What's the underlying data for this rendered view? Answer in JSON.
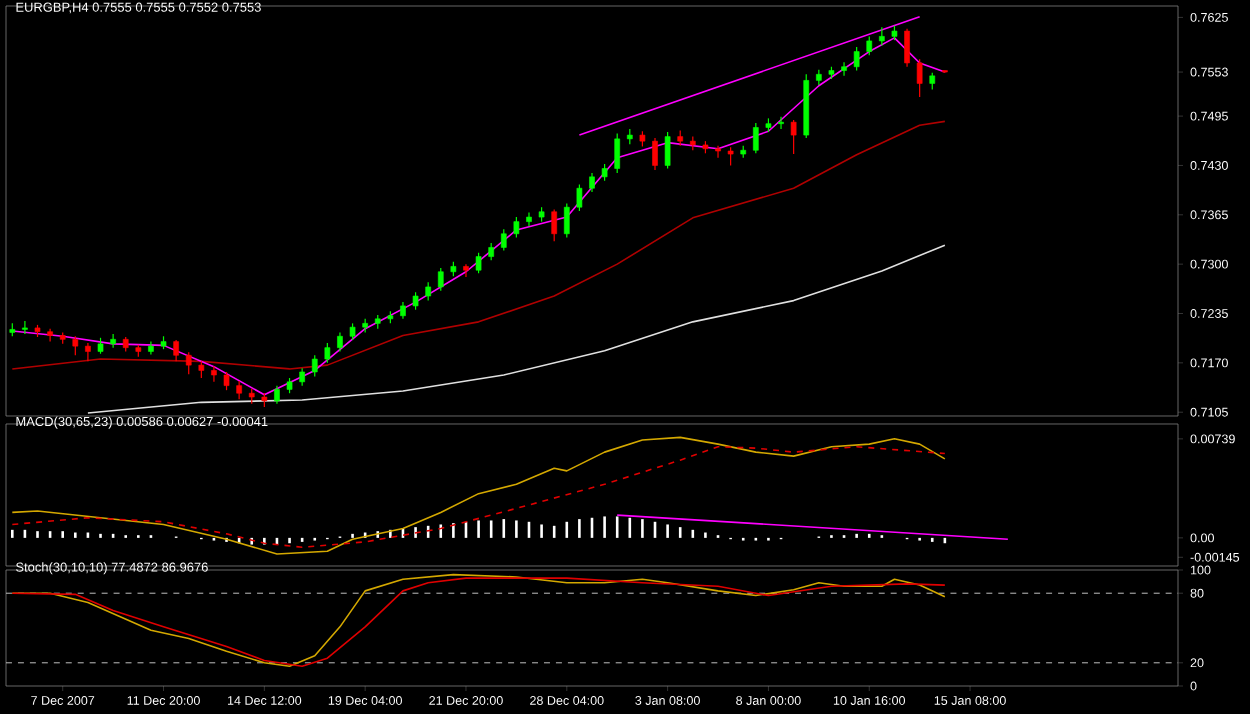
{
  "chart_data": [
    {
      "type": "candlestick",
      "title": "EURGBP,H4  0.7555 0.7555 0.7552 0.7553",
      "tick_labels": "y",
      "categories": [
        null,
        null,
        null,
        null,
        null,
        null,
        null,
        null,
        null,
        null,
        null,
        null,
        null,
        null,
        null,
        null,
        null,
        null,
        null,
        null,
        null,
        null,
        null,
        null,
        null,
        null,
        null,
        null,
        null,
        null,
        null,
        null,
        null,
        null,
        null,
        null,
        null,
        null,
        null,
        null,
        null,
        null,
        null,
        null,
        null,
        null,
        null,
        null,
        null,
        null,
        null,
        null,
        null,
        null,
        null,
        null,
        null,
        null,
        null,
        null,
        null,
        null,
        null,
        null,
        null,
        null,
        null,
        null,
        null,
        null,
        null,
        null,
        null,
        null,
        null,
        null,
        null,
        null,
        null,
        null,
        null,
        null,
        null,
        null,
        null,
        null,
        null,
        null,
        null,
        null,
        null,
        null,
        null
      ],
      "ylim": [
        0.71,
        0.764
      ],
      "yticks": [
        {
          "value": 0.7625,
          "label": "0.7625"
        },
        {
          "value": 0.7553,
          "label": "0.7553"
        },
        {
          "value": 0.7495,
          "label": "0.7495"
        },
        {
          "value": 0.743,
          "label": "0.7430"
        },
        {
          "value": 0.7365,
          "label": "0.7365"
        },
        {
          "value": 0.73,
          "label": "0.7300"
        },
        {
          "value": 0.7235,
          "label": "0.7235"
        },
        {
          "value": 0.717,
          "label": "0.7170"
        },
        {
          "value": 0.7105,
          "label": "0.7105"
        }
      ],
      "ohlc": [
        [
          0.721,
          0.7222,
          0.7205,
          0.7214
        ],
        [
          0.7214,
          0.7225,
          0.7208,
          0.7216
        ],
        [
          0.7216,
          0.722,
          0.7204,
          0.7211
        ],
        [
          0.7211,
          0.7215,
          0.7198,
          0.7206
        ],
        [
          0.7206,
          0.721,
          0.7195,
          0.7201
        ],
        [
          0.7201,
          0.7205,
          0.718,
          0.7192
        ],
        [
          0.7192,
          0.7196,
          0.7172,
          0.7185
        ],
        [
          0.7185,
          0.7203,
          0.7182,
          0.7195
        ],
        [
          0.7195,
          0.7208,
          0.719,
          0.7201
        ],
        [
          0.7201,
          0.7204,
          0.7185,
          0.719
        ],
        [
          0.719,
          0.7194,
          0.7178,
          0.7185
        ],
        [
          0.7185,
          0.7198,
          0.7181,
          0.7192
        ],
        [
          0.7192,
          0.7205,
          0.7188,
          0.7198
        ],
        [
          0.7198,
          0.72,
          0.7172,
          0.718
        ],
        [
          0.718,
          0.7184,
          0.7155,
          0.7167
        ],
        [
          0.7167,
          0.7172,
          0.715,
          0.716
        ],
        [
          0.716,
          0.7166,
          0.7145,
          0.7154
        ],
        [
          0.7154,
          0.7158,
          0.7134,
          0.714
        ],
        [
          0.714,
          0.7146,
          0.7122,
          0.713
        ],
        [
          0.713,
          0.7136,
          0.7116,
          0.7125
        ],
        [
          0.7125,
          0.713,
          0.7112,
          0.712
        ],
        [
          0.712,
          0.714,
          0.7116,
          0.7135
        ],
        [
          0.7135,
          0.715,
          0.713,
          0.7145
        ],
        [
          0.7145,
          0.7163,
          0.714,
          0.7158
        ],
        [
          0.7158,
          0.718,
          0.7152,
          0.7175
        ],
        [
          0.7175,
          0.7196,
          0.717,
          0.719
        ],
        [
          0.719,
          0.721,
          0.7185,
          0.7205
        ],
        [
          0.7205,
          0.7222,
          0.72,
          0.7217
        ],
        [
          0.7217,
          0.7228,
          0.721,
          0.7222
        ],
        [
          0.7222,
          0.7233,
          0.7215,
          0.7228
        ],
        [
          0.7228,
          0.7238,
          0.7222,
          0.7232
        ],
        [
          0.7232,
          0.725,
          0.7228,
          0.7245
        ],
        [
          0.7245,
          0.7263,
          0.724,
          0.7258
        ],
        [
          0.7258,
          0.7276,
          0.7252,
          0.727
        ],
        [
          0.727,
          0.7295,
          0.7265,
          0.729
        ],
        [
          0.729,
          0.7303,
          0.7284,
          0.7297
        ],
        [
          0.7297,
          0.73,
          0.7283,
          0.7292
        ],
        [
          0.7292,
          0.7315,
          0.7288,
          0.731
        ],
        [
          0.731,
          0.7328,
          0.7305,
          0.7322
        ],
        [
          0.7322,
          0.7346,
          0.7318,
          0.734
        ],
        [
          0.734,
          0.7362,
          0.7335,
          0.7356
        ],
        [
          0.7356,
          0.7368,
          0.735,
          0.7362
        ],
        [
          0.7362,
          0.7375,
          0.7356,
          0.7369
        ],
        [
          0.7369,
          0.7372,
          0.733,
          0.734
        ],
        [
          0.734,
          0.738,
          0.7335,
          0.7375
        ],
        [
          0.7375,
          0.7405,
          0.737,
          0.74
        ],
        [
          0.74,
          0.742,
          0.7395,
          0.7415
        ],
        [
          0.7415,
          0.7432,
          0.741,
          0.7426
        ],
        [
          0.7426,
          0.7472,
          0.742,
          0.7465
        ],
        [
          0.7465,
          0.7478,
          0.7458,
          0.747
        ],
        [
          0.747,
          0.7475,
          0.7455,
          0.7462
        ],
        [
          0.7462,
          0.7466,
          0.7424,
          0.743
        ],
        [
          0.743,
          0.7474,
          0.7426,
          0.7468
        ],
        [
          0.7468,
          0.7476,
          0.7456,
          0.7462
        ],
        [
          0.7462,
          0.7468,
          0.745,
          0.7457
        ],
        [
          0.7457,
          0.7462,
          0.7446,
          0.7452
        ],
        [
          0.7452,
          0.7456,
          0.744,
          0.7449
        ],
        [
          0.7449,
          0.7454,
          0.743,
          0.7445
        ],
        [
          0.7445,
          0.7456,
          0.744,
          0.745
        ],
        [
          0.745,
          0.7486,
          0.7446,
          0.748
        ],
        [
          0.748,
          0.7492,
          0.7474,
          0.7485
        ],
        [
          0.7485,
          0.7494,
          0.7478,
          0.7487
        ],
        [
          0.7487,
          0.749,
          0.7445,
          0.747
        ],
        [
          0.747,
          0.755,
          0.7466,
          0.7542
        ],
        [
          0.7542,
          0.7556,
          0.7536,
          0.755
        ],
        [
          0.755,
          0.756,
          0.7544,
          0.7555
        ],
        [
          0.7555,
          0.7566,
          0.7548,
          0.756
        ],
        [
          0.756,
          0.7586,
          0.7555,
          0.758
        ],
        [
          0.758,
          0.76,
          0.7575,
          0.7594
        ],
        [
          0.7594,
          0.7612,
          0.7588,
          0.76
        ],
        [
          0.76,
          0.7614,
          0.7595,
          0.7607
        ],
        [
          0.7607,
          0.761,
          0.756,
          0.7565
        ],
        [
          0.7565,
          0.757,
          0.752,
          0.7538
        ],
        [
          0.7538,
          0.7552,
          0.753,
          0.7548
        ],
        [
          0.7555,
          0.7555,
          0.7552,
          0.7553
        ],
        null,
        null,
        null,
        null,
        null,
        null,
        null,
        null,
        null,
        null,
        null,
        null,
        null,
        null,
        null,
        null,
        null,
        null
      ],
      "series": [
        {
          "type": "line",
          "color": "#b00000",
          "values": [
            0.7162,
            null,
            null,
            null,
            null,
            null,
            null,
            0.7175,
            null,
            null,
            null,
            null,
            null,
            null,
            null,
            0.7172,
            null,
            null,
            null,
            null,
            null,
            null,
            0.7162,
            null,
            null,
            0.7167,
            null,
            null,
            null,
            null,
            null,
            0.7206,
            null,
            null,
            null,
            null,
            null,
            0.7224,
            null,
            null,
            null,
            null,
            null,
            0.7258,
            null,
            null,
            null,
            null,
            0.73,
            null,
            null,
            null,
            null,
            null,
            0.7361,
            null,
            null,
            null,
            null,
            null,
            null,
            null,
            0.74,
            null,
            null,
            null,
            null,
            0.7444,
            null,
            null,
            null,
            null,
            0.7483,
            null,
            0.7488,
            null,
            null,
            null,
            null,
            null,
            null,
            null,
            null,
            null,
            null,
            null,
            null,
            null,
            null,
            null,
            null,
            null,
            null
          ]
        },
        {
          "type": "line",
          "color": "#e0e0e0",
          "values": [
            null,
            null,
            null,
            null,
            null,
            null,
            0.7104,
            null,
            null,
            null,
            null,
            null,
            null,
            null,
            null,
            0.7118,
            null,
            null,
            null,
            null,
            null,
            null,
            null,
            0.7121,
            null,
            null,
            null,
            null,
            null,
            null,
            null,
            0.7133,
            null,
            null,
            null,
            null,
            null,
            null,
            null,
            0.7154,
            null,
            null,
            null,
            null,
            null,
            null,
            null,
            0.7186,
            null,
            null,
            null,
            null,
            null,
            null,
            0.7224,
            null,
            null,
            null,
            null,
            null,
            null,
            null,
            0.7252,
            null,
            null,
            null,
            null,
            null,
            null,
            0.7291,
            null,
            null,
            null,
            null,
            0.7325,
            null,
            null,
            null,
            null,
            null,
            null,
            null,
            null,
            null,
            null,
            null,
            null,
            null,
            null,
            null,
            null,
            null,
            null
          ]
        },
        {
          "type": "line",
          "color": "#ff00ff",
          "values": [
            0.7212,
            null,
            null,
            null,
            0.7205,
            null,
            null,
            null,
            0.7195,
            null,
            null,
            null,
            0.7193,
            null,
            null,
            null,
            0.7165,
            null,
            null,
            null,
            0.7128,
            null,
            null,
            null,
            0.716,
            null,
            null,
            null,
            0.7215,
            null,
            null,
            null,
            0.725,
            null,
            null,
            null,
            0.729,
            null,
            null,
            null,
            0.7345,
            null,
            null,
            null,
            0.7362,
            null,
            null,
            null,
            0.744,
            null,
            null,
            null,
            0.746,
            null,
            null,
            null,
            0.7452,
            null,
            null,
            null,
            0.7475,
            null,
            null,
            null,
            0.7535,
            null,
            null,
            null,
            0.758,
            null,
            0.7598,
            null,
            0.7565,
            null,
            0.7553,
            null,
            null,
            null,
            null,
            null,
            null,
            null,
            null,
            null,
            null,
            null,
            null,
            null,
            null,
            null,
            null,
            null,
            null
          ]
        },
        {
          "type": "line",
          "color": "#ff00ff",
          "values": [
            null,
            null,
            null,
            null,
            null,
            null,
            null,
            null,
            null,
            null,
            null,
            null,
            null,
            null,
            null,
            null,
            null,
            null,
            null,
            null,
            null,
            null,
            null,
            null,
            null,
            null,
            null,
            null,
            null,
            null,
            null,
            null,
            null,
            null,
            null,
            null,
            null,
            null,
            null,
            null,
            null,
            null,
            null,
            null,
            null,
            0.747,
            null,
            null,
            null,
            null,
            null,
            null,
            null,
            null,
            null,
            null,
            null,
            null,
            null,
            null,
            null,
            null,
            null,
            null,
            null,
            null,
            null,
            null,
            null,
            null,
            null,
            null,
            0.7626,
            null,
            null,
            null,
            null,
            null,
            null,
            null,
            null,
            null,
            null,
            null,
            null,
            null,
            null,
            null,
            null,
            null,
            null,
            null,
            null
          ]
        }
      ]
    },
    {
      "type": "bar",
      "title": "MACD(30,65,23) 0.00586 0.00627 -0.00041",
      "tick_labels": "y",
      "categories": [
        null,
        null,
        null,
        null,
        null,
        null,
        null,
        null,
        null,
        null,
        null,
        null,
        null,
        null,
        null,
        null,
        null,
        null,
        null,
        null,
        null,
        null,
        null,
        null,
        null,
        null,
        null,
        null,
        null,
        null,
        null,
        null,
        null,
        null,
        null,
        null,
        null,
        null,
        null,
        null,
        null,
        null,
        null,
        null,
        null,
        null,
        null,
        null,
        null,
        null,
        null,
        null,
        null,
        null,
        null,
        null,
        null,
        null,
        null,
        null,
        null,
        null,
        null,
        null,
        null,
        null,
        null,
        null,
        null,
        null,
        null,
        null,
        null,
        null,
        null,
        null,
        null,
        null,
        null,
        null,
        null,
        null,
        null,
        null,
        null,
        null,
        null,
        null,
        null,
        null,
        null,
        null,
        null
      ],
      "ylim": [
        -0.0021,
        0.0085
      ],
      "yticks": [
        {
          "value": 0.00739,
          "label": "0.00739"
        },
        {
          "value": 0,
          "label": "0.00"
        },
        {
          "value": -0.00145,
          "label": "-0.00145"
        }
      ],
      "series": [
        {
          "type": "bar",
          "color": "#ffffff",
          "values": [
            0.0006,
            0.0006,
            0.0005,
            0.0005,
            0.0005,
            0.0004,
            0.0004,
            0.0003,
            0.0003,
            0.0002,
            0.0002,
            0.0002,
            null,
            0.0001,
            0.0,
            -0.0001,
            -0.0002,
            -0.0003,
            -0.0004,
            -0.0005,
            -0.0005,
            -0.0005,
            -0.0004,
            -0.0003,
            -0.0002,
            -0.0001,
            0.0001,
            0.0003,
            0.0004,
            0.0005,
            0.0006,
            0.0007,
            0.0008,
            0.0009,
            0.001,
            0.0011,
            0.0012,
            0.0013,
            0.0013,
            0.0014,
            0.0013,
            0.0012,
            0.001,
            0.0009,
            0.0012,
            0.0014,
            0.0015,
            0.0016,
            0.0016,
            0.0015,
            0.0014,
            0.0012,
            0.001,
            0.0008,
            0.0006,
            0.0004,
            0.0002,
            -0.0001,
            -0.0002,
            -0.0002,
            -0.0002,
            -0.0001,
            0.0,
            0.0,
            0.0001,
            0.0002,
            0.0002,
            0.0003,
            0.0003,
            0.0002,
            null,
            -0.0001,
            -0.0002,
            -0.0003,
            -0.0004,
            null,
            null,
            null,
            null,
            null,
            null,
            null,
            null,
            null,
            null,
            null,
            null,
            null,
            null,
            null,
            null,
            null,
            null
          ]
        },
        {
          "type": "line",
          "color": "#d4a800",
          "values": [
            0.0019,
            null,
            0.002,
            null,
            null,
            null,
            null,
            0.0015,
            null,
            null,
            null,
            null,
            0.001,
            null,
            null,
            null,
            null,
            -0.0001,
            null,
            null,
            null,
            -0.0012,
            null,
            null,
            null,
            -0.001,
            null,
            -0.0001,
            null,
            null,
            null,
            0.0007,
            null,
            null,
            0.0019,
            null,
            null,
            0.0033,
            null,
            null,
            0.004,
            null,
            null,
            0.0052,
            0.005,
            null,
            null,
            0.0064,
            null,
            null,
            0.0073,
            null,
            null,
            0.0075,
            null,
            null,
            0.007,
            null,
            null,
            0.0064,
            null,
            null,
            0.0061,
            null,
            null,
            0.0068,
            null,
            null,
            0.007,
            null,
            0.0074,
            null,
            0.007,
            null,
            0.0059,
            null,
            null,
            null,
            null,
            null,
            null,
            null,
            null,
            null,
            null,
            null,
            null,
            null,
            null,
            null,
            null,
            null,
            null
          ]
        },
        {
          "type": "line",
          "color": "#e00000",
          "line_style": "dashed",
          "values": [
            0.001,
            null,
            null,
            null,
            null,
            null,
            0.0015,
            null,
            null,
            null,
            null,
            null,
            0.0012,
            null,
            null,
            null,
            null,
            0.0003,
            null,
            null,
            -0.0004,
            null,
            null,
            -0.0007,
            null,
            null,
            null,
            null,
            -0.0003,
            null,
            null,
            null,
            null,
            null,
            0.0007,
            null,
            null,
            null,
            null,
            null,
            0.0022,
            null,
            null,
            null,
            null,
            null,
            null,
            0.004,
            null,
            null,
            null,
            null,
            null,
            0.0058,
            null,
            null,
            0.0068,
            null,
            null,
            0.0067,
            null,
            null,
            0.0064,
            null,
            null,
            null,
            null,
            0.0068,
            null,
            null,
            null,
            null,
            null,
            null,
            0.0063,
            null,
            null,
            null,
            null,
            null,
            null,
            null,
            null,
            null,
            null,
            null,
            null,
            null,
            null,
            null,
            null,
            null,
            null
          ]
        },
        {
          "type": "line",
          "color": "#ff00ff",
          "values": [
            null,
            null,
            null,
            null,
            null,
            null,
            null,
            null,
            null,
            null,
            null,
            null,
            null,
            null,
            null,
            null,
            null,
            null,
            null,
            null,
            null,
            null,
            null,
            null,
            null,
            null,
            null,
            null,
            null,
            null,
            null,
            null,
            null,
            null,
            null,
            null,
            null,
            null,
            null,
            null,
            null,
            null,
            null,
            null,
            null,
            null,
            null,
            null,
            0.0017,
            null,
            null,
            null,
            null,
            null,
            null,
            null,
            null,
            null,
            null,
            null,
            null,
            null,
            null,
            null,
            null,
            null,
            null,
            null,
            null,
            null,
            null,
            null,
            null,
            null,
            null,
            null,
            null,
            null,
            null,
            -0.0001,
            null,
            null,
            null,
            null,
            null,
            null,
            null,
            null,
            null,
            null,
            null,
            null,
            null
          ]
        }
      ]
    },
    {
      "type": "line",
      "title": "Stoch(30,10,10) 77.4872 86.9676",
      "categories": [
        null,
        null,
        null,
        null,
        "7 Dec 2007",
        null,
        null,
        null,
        null,
        null,
        null,
        null,
        "11 Dec 20:00",
        null,
        null,
        null,
        null,
        null,
        null,
        null,
        "14 Dec 12:00",
        null,
        null,
        null,
        null,
        null,
        null,
        null,
        "19 Dec 04:00",
        null,
        null,
        null,
        null,
        null,
        null,
        null,
        "21 Dec 20:00",
        null,
        null,
        null,
        null,
        null,
        null,
        null,
        "28 Dec 04:00",
        null,
        null,
        null,
        null,
        null,
        null,
        null,
        "3 Jan 08:00",
        null,
        null,
        null,
        null,
        null,
        null,
        null,
        "8 Jan 00:00",
        null,
        null,
        null,
        null,
        null,
        null,
        null,
        "10 Jan 16:00",
        null,
        null,
        null,
        null,
        null,
        null,
        null,
        "15 Jan 08:00",
        null,
        null,
        null,
        null,
        null,
        null,
        null,
        null,
        null,
        null,
        null,
        null,
        null,
        null,
        null,
        null
      ],
      "ylim": [
        0,
        100
      ],
      "yticks": [
        100,
        80,
        20,
        0
      ],
      "ref_lines": [
        {
          "axis": "y",
          "value": 80,
          "color": "#c0c0c0",
          "line_style": "dashed"
        },
        {
          "axis": "y",
          "value": 20,
          "color": "#c0c0c0",
          "line_style": "dashed"
        }
      ],
      "series": [
        {
          "color": "#d4a800",
          "values": [
            80,
            null,
            null,
            80,
            null,
            null,
            72,
            null,
            null,
            null,
            null,
            48,
            null,
            null,
            41,
            null,
            null,
            30,
            null,
            null,
            20,
            null,
            17,
            null,
            26,
            null,
            51,
            null,
            82,
            null,
            null,
            92,
            null,
            null,
            null,
            96,
            null,
            null,
            null,
            null,
            94,
            null,
            null,
            null,
            89,
            null,
            null,
            89,
            null,
            null,
            92,
            null,
            89,
            null,
            null,
            null,
            82,
            null,
            null,
            78,
            null,
            null,
            83,
            null,
            89,
            null,
            86,
            null,
            null,
            86,
            92,
            null,
            87,
            null,
            77,
            null,
            null,
            null,
            null,
            null,
            null,
            null,
            null,
            null,
            null,
            null,
            null,
            null,
            null,
            null,
            null,
            null,
            null
          ]
        },
        {
          "color": "#e00000",
          "values": [
            80,
            null,
            null,
            null,
            null,
            79,
            null,
            null,
            65,
            null,
            null,
            null,
            51,
            null,
            null,
            null,
            null,
            34,
            null,
            null,
            22,
            null,
            null,
            17,
            null,
            24,
            null,
            null,
            51,
            null,
            null,
            82,
            null,
            89,
            null,
            null,
            93,
            null,
            null,
            null,
            null,
            null,
            null,
            null,
            93,
            null,
            null,
            null,
            null,
            null,
            89,
            null,
            null,
            null,
            null,
            null,
            86,
            null,
            null,
            null,
            78,
            null,
            null,
            null,
            null,
            86,
            null,
            null,
            null,
            null,
            null,
            88,
            null,
            null,
            87,
            null,
            null,
            null,
            null,
            null,
            null,
            null,
            null,
            null,
            null,
            null,
            null,
            null,
            null,
            null,
            null,
            null,
            null
          ]
        }
      ]
    }
  ]
}
